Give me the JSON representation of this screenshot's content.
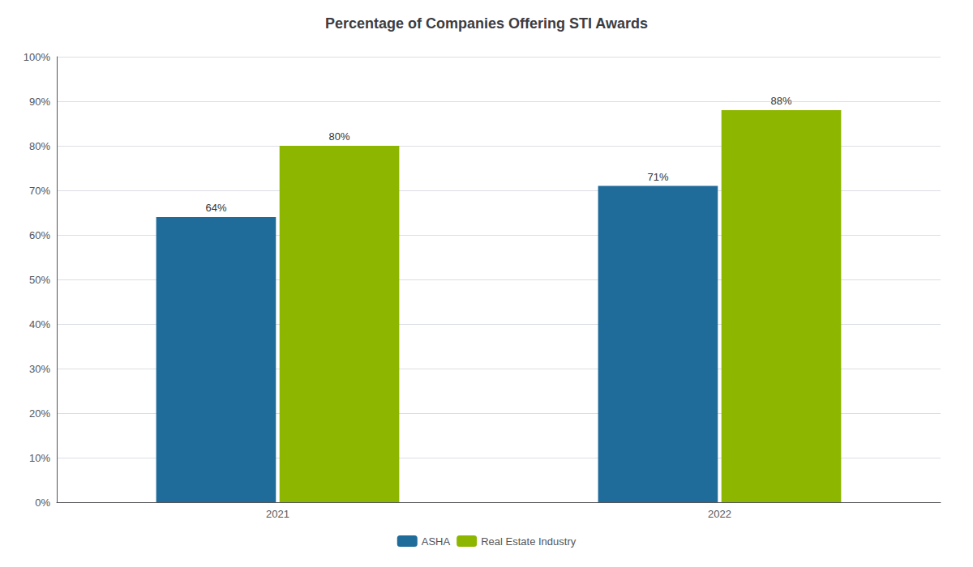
{
  "chart_data": {
    "type": "bar",
    "title": "Percentage of Companies Offering STI Awards",
    "categories": [
      "2021",
      "2022"
    ],
    "series": [
      {
        "name": "ASHA",
        "color": "#1F6B9A",
        "values": [
          64,
          71
        ],
        "value_labels": [
          "64%",
          "71%"
        ]
      },
      {
        "name": "Real Estate Industry",
        "color": "#8DB600",
        "values": [
          80,
          88
        ],
        "value_labels": [
          "80%",
          "88%"
        ]
      }
    ],
    "ylim": [
      0,
      100
    ],
    "yticks": [
      {
        "value": 0,
        "label": "0%"
      },
      {
        "value": 10,
        "label": "10%"
      },
      {
        "value": 20,
        "label": "20%"
      },
      {
        "value": 30,
        "label": "30%"
      },
      {
        "value": 40,
        "label": "40%"
      },
      {
        "value": 50,
        "label": "50%"
      },
      {
        "value": 60,
        "label": "60%"
      },
      {
        "value": 70,
        "label": "70%"
      },
      {
        "value": 80,
        "label": "80%"
      },
      {
        "value": 90,
        "label": "90%"
      },
      {
        "value": 100,
        "label": "100%"
      }
    ],
    "grid": true,
    "legend": "bottom",
    "data_labels": true
  }
}
